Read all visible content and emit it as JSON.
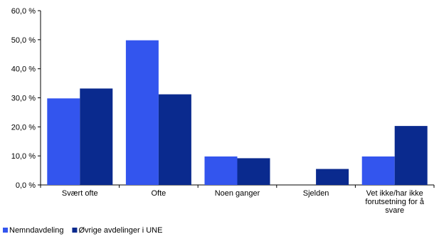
{
  "chart_data": {
    "type": "bar",
    "categories": [
      [
        "Svært ofte"
      ],
      [
        "Ofte"
      ],
      [
        "Noen ganger"
      ],
      [
        "Sjelden"
      ],
      [
        "Vet ikke/har ikke",
        "forutsetning for å",
        "svare"
      ]
    ],
    "series": [
      {
        "name": "Nemndavdeling",
        "color": "#3355ee",
        "values": [
          29.8,
          49.8,
          9.8,
          0.0,
          9.8
        ]
      },
      {
        "name": "Øvrige avdelinger i UNE",
        "color": "#0a2a8e",
        "values": [
          33.2,
          31.2,
          9.2,
          5.5,
          20.3
        ]
      }
    ],
    "yticks": [
      "0,0 %",
      "10,0 %",
      "20,0 %",
      "30,0 %",
      "40,0 %",
      "50,0 %",
      "60,0 %"
    ],
    "ylim": [
      0,
      60
    ],
    "legend_position": "bottom-left",
    "grid": false
  }
}
